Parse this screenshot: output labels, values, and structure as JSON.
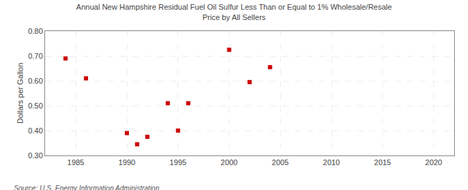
{
  "chart_data": {
    "type": "scatter",
    "title": "Annual New Hampshire Residual Fuel Oil Sulfur Less Than or Equal to 1% Wholesale/Resale\nPrice by All Sellers",
    "ylabel": "Dollars per Gallon",
    "annotations": [
      "Source: U.S. Energy Information Administration"
    ],
    "x": [
      1984,
      1986,
      1990,
      1991,
      1992,
      1994,
      1995,
      1996,
      2000,
      2002,
      2004
    ],
    "values": [
      0.69,
      0.61,
      0.39,
      0.345,
      0.375,
      0.51,
      0.4,
      0.51,
      0.725,
      0.595,
      0.655
    ],
    "color": "#cc0000",
    "marker": "square",
    "xlim": [
      1982,
      2022
    ],
    "ylim": [
      0.3,
      0.8
    ],
    "xticks": [
      1985,
      1990,
      1995,
      2000,
      2005,
      2010,
      2015,
      2020
    ],
    "yticks": [
      {
        "value": 0.3,
        "label": "0.30"
      },
      {
        "value": 0.4,
        "label": "0.40"
      },
      {
        "value": 0.5,
        "label": "0.50"
      },
      {
        "value": 0.6,
        "label": "0.60"
      },
      {
        "value": 0.7,
        "label": "0.70"
      },
      {
        "value": 0.8,
        "label": "0.80"
      }
    ],
    "grid": true
  }
}
